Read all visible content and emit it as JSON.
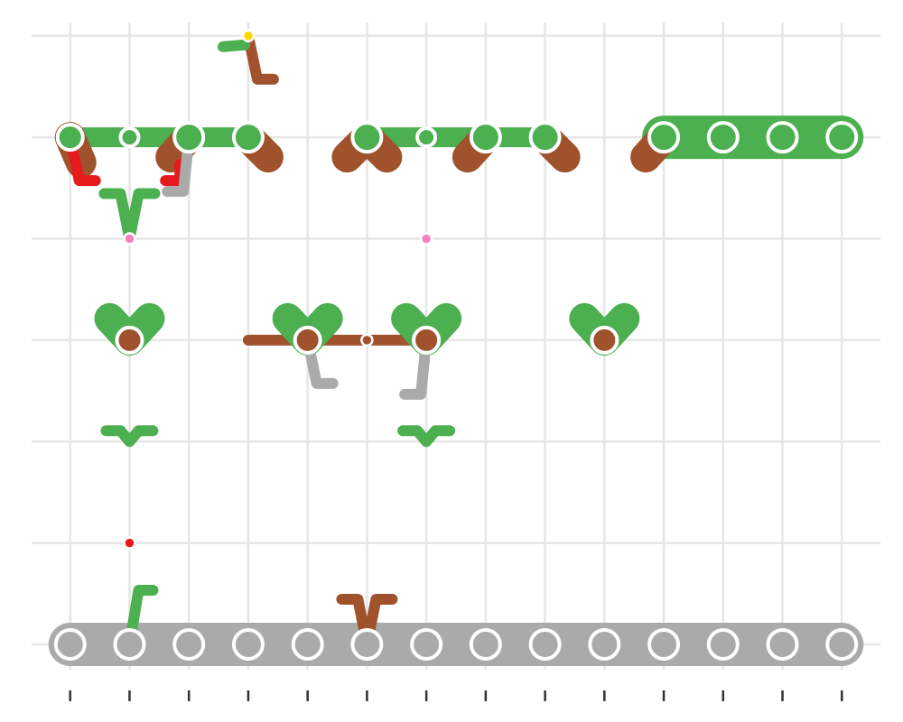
{
  "chart_data": {
    "type": "scatter",
    "title": "",
    "xlabel": "",
    "ylabel": "",
    "x_ticks": [
      0,
      1,
      2,
      3,
      4,
      5,
      6,
      7,
      8,
      9,
      10,
      11,
      12,
      13
    ],
    "y_levels": [
      0,
      1,
      2,
      3,
      4,
      5,
      6
    ],
    "xlim": [
      -0.65,
      13.65
    ],
    "ylim": [
      -0.32,
      6.22
    ],
    "grid": true,
    "tick_labels_shown": false,
    "colors": {
      "green": "#4caf50",
      "brown": "#a0522d",
      "grey": "#aaaaaa",
      "red": "#e41a1c",
      "pink": "#f781bf",
      "yellow": "#ffd700",
      "grid": "#e6e6e6",
      "tick": "#333333"
    },
    "links": [
      {
        "from": [
          0,
          0
        ],
        "to": [
          13,
          0
        ],
        "style": "bar",
        "width": 5,
        "color": "grey"
      },
      {
        "from": [
          0,
          5
        ],
        "to": [
          3,
          5
        ],
        "style": "bar",
        "width": 3,
        "color": "green"
      },
      {
        "from": [
          5,
          5
        ],
        "to": [
          8,
          5
        ],
        "style": "bar",
        "width": 3,
        "color": "green"
      },
      {
        "from": [
          10,
          5
        ],
        "to": [
          13,
          5
        ],
        "style": "bar",
        "width": 5,
        "color": "green"
      },
      {
        "from": [
          3,
          3
        ],
        "to": [
          6,
          3
        ],
        "style": "bar",
        "width": 2,
        "color": "brown"
      }
    ],
    "lobes": [
      {
        "at": [
          0,
          5
        ],
        "color": "brown",
        "dir": "down"
      },
      {
        "at": [
          2,
          5
        ],
        "color": "brown",
        "dir": "down-left"
      },
      {
        "at": [
          3,
          5
        ],
        "color": "brown",
        "dir": "down-right"
      },
      {
        "at": [
          5,
          5
        ],
        "color": "brown",
        "dir": "down-both"
      },
      {
        "at": [
          7,
          5
        ],
        "color": "brown",
        "dir": "down-left"
      },
      {
        "at": [
          8,
          5
        ],
        "color": "brown",
        "dir": "down-right"
      },
      {
        "at": [
          10,
          5
        ],
        "color": "brown",
        "dir": "down-left"
      },
      {
        "at": [
          1,
          3
        ],
        "color": "green",
        "dir": "up-both"
      },
      {
        "at": [
          4,
          3
        ],
        "color": "green",
        "dir": "up-both"
      },
      {
        "at": [
          6,
          3
        ],
        "color": "green",
        "dir": "up-both"
      },
      {
        "at": [
          9,
          3
        ],
        "color": "green",
        "dir": "up-both"
      }
    ],
    "hooks": [
      {
        "at": [
          0,
          5
        ],
        "color": "red",
        "dir": "down-right"
      },
      {
        "at": [
          2,
          5
        ],
        "color": "red",
        "dir": "down-left-short"
      },
      {
        "at": [
          2,
          5
        ],
        "color": "grey",
        "dir": "down-left"
      },
      {
        "at": [
          4,
          3
        ],
        "color": "grey",
        "dir": "down-right"
      },
      {
        "at": [
          6,
          3
        ],
        "color": "grey",
        "dir": "down-left"
      },
      {
        "at": [
          3,
          6
        ],
        "color": "brown",
        "dir": "down-right"
      },
      {
        "at": [
          3,
          6
        ],
        "color": "green",
        "dir": "left-short"
      },
      {
        "at": [
          1,
          4
        ],
        "color": "green",
        "dir": "up-v"
      },
      {
        "at": [
          1,
          0
        ],
        "color": "green",
        "dir": "up-right"
      },
      {
        "at": [
          5,
          0
        ],
        "color": "brown",
        "dir": "up-v"
      },
      {
        "at": [
          1,
          2
        ],
        "color": "green",
        "dir": "up-spread"
      },
      {
        "at": [
          6,
          2
        ],
        "color": "green",
        "dir": "up-spread"
      }
    ],
    "nodes": [
      {
        "x": 0,
        "y": 0,
        "color": "grey",
        "size": "large"
      },
      {
        "x": 1,
        "y": 0,
        "color": "grey",
        "size": "large"
      },
      {
        "x": 2,
        "y": 0,
        "color": "grey",
        "size": "large"
      },
      {
        "x": 3,
        "y": 0,
        "color": "grey",
        "size": "large"
      },
      {
        "x": 4,
        "y": 0,
        "color": "grey",
        "size": "large"
      },
      {
        "x": 5,
        "y": 0,
        "color": "grey",
        "size": "large"
      },
      {
        "x": 6,
        "y": 0,
        "color": "grey",
        "size": "large"
      },
      {
        "x": 7,
        "y": 0,
        "color": "grey",
        "size": "large"
      },
      {
        "x": 8,
        "y": 0,
        "color": "grey",
        "size": "large"
      },
      {
        "x": 9,
        "y": 0,
        "color": "grey",
        "size": "large"
      },
      {
        "x": 10,
        "y": 0,
        "color": "grey",
        "size": "large"
      },
      {
        "x": 11,
        "y": 0,
        "color": "grey",
        "size": "large"
      },
      {
        "x": 12,
        "y": 0,
        "color": "grey",
        "size": "large"
      },
      {
        "x": 13,
        "y": 0,
        "color": "grey",
        "size": "large"
      },
      {
        "x": 0,
        "y": 5,
        "color": "green",
        "size": "medium"
      },
      {
        "x": 1,
        "y": 5,
        "color": "green",
        "size": "small"
      },
      {
        "x": 2,
        "y": 5,
        "color": "green",
        "size": "large"
      },
      {
        "x": 3,
        "y": 5,
        "color": "green",
        "size": "large"
      },
      {
        "x": 5,
        "y": 5,
        "color": "green",
        "size": "large"
      },
      {
        "x": 6,
        "y": 5,
        "color": "green",
        "size": "small"
      },
      {
        "x": 7,
        "y": 5,
        "color": "green",
        "size": "large"
      },
      {
        "x": 8,
        "y": 5,
        "color": "green",
        "size": "large"
      },
      {
        "x": 10,
        "y": 5,
        "color": "green",
        "size": "large"
      },
      {
        "x": 11,
        "y": 5,
        "color": "green",
        "size": "large"
      },
      {
        "x": 12,
        "y": 5,
        "color": "green",
        "size": "large"
      },
      {
        "x": 13,
        "y": 5,
        "color": "green",
        "size": "large"
      },
      {
        "x": 1,
        "y": 3,
        "color": "brown",
        "size": "medium"
      },
      {
        "x": 4,
        "y": 3,
        "color": "brown",
        "size": "medium"
      },
      {
        "x": 5,
        "y": 3,
        "color": "brown",
        "size": "tiny"
      },
      {
        "x": 6,
        "y": 3,
        "color": "brown",
        "size": "medium"
      },
      {
        "x": 9,
        "y": 3,
        "color": "brown",
        "size": "medium"
      },
      {
        "x": 3,
        "y": 6,
        "color": "yellow",
        "size": "tiny"
      },
      {
        "x": 1,
        "y": 4,
        "color": "pink",
        "size": "tiny"
      },
      {
        "x": 6,
        "y": 4,
        "color": "pink",
        "size": "tiny"
      },
      {
        "x": 1,
        "y": 1,
        "color": "red",
        "size": "tiny"
      }
    ]
  }
}
